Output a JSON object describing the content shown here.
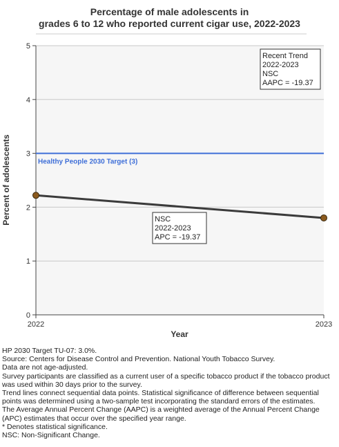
{
  "chart_data": {
    "type": "line",
    "title_line1": "Percentage of male adolescents in",
    "title_line2": "grades 6 to 12 who reported current cigar use, 2022-2023",
    "xlabel": "Year",
    "ylabel": "Percent of adolescents",
    "x": [
      2022,
      2023
    ],
    "xticks": [
      "2022",
      "2023"
    ],
    "yticks": [
      "0",
      "1",
      "2",
      "3",
      "4",
      "5"
    ],
    "ylim": [
      0,
      5
    ],
    "grid": true,
    "series": [
      {
        "values": [
          2.22,
          1.8
        ],
        "color": "#3b3b3b",
        "marker_color": "#8b5a1e"
      }
    ],
    "target": {
      "value": 3,
      "label": "Healthy People 2030 Target (3)",
      "color": "#3f6fd8"
    },
    "trend_box": [
      "Recent Trend",
      "2022-2023",
      "NSC",
      "AAPC = -19.37"
    ],
    "segment_box": [
      "NSC",
      "2022-2023",
      "APC = -19.37"
    ]
  },
  "footnotes": [
    "HP 2030 Target TU-07: 3.0%.",
    "Source: Centers for Disease Control and Prevention. National Youth Tobacco Survey.",
    "Data are not age-adjusted.",
    "Survey participants are classified as a current user of a specific tobacco product if the tobacco product was used within 30 days prior to the survey.",
    "Trend lines connect sequential data points. Statistical significance of difference between sequential points was determined using a two-sample test incorporating the standard errors of the estimates.",
    "The Average Annual Percent Change (AAPC) is a weighted average of the Annual Percent Change (APC) estimates that occur over the specified year range.",
    "* Denotes statistical significance.",
    "NSC: Non-Significant Change."
  ]
}
